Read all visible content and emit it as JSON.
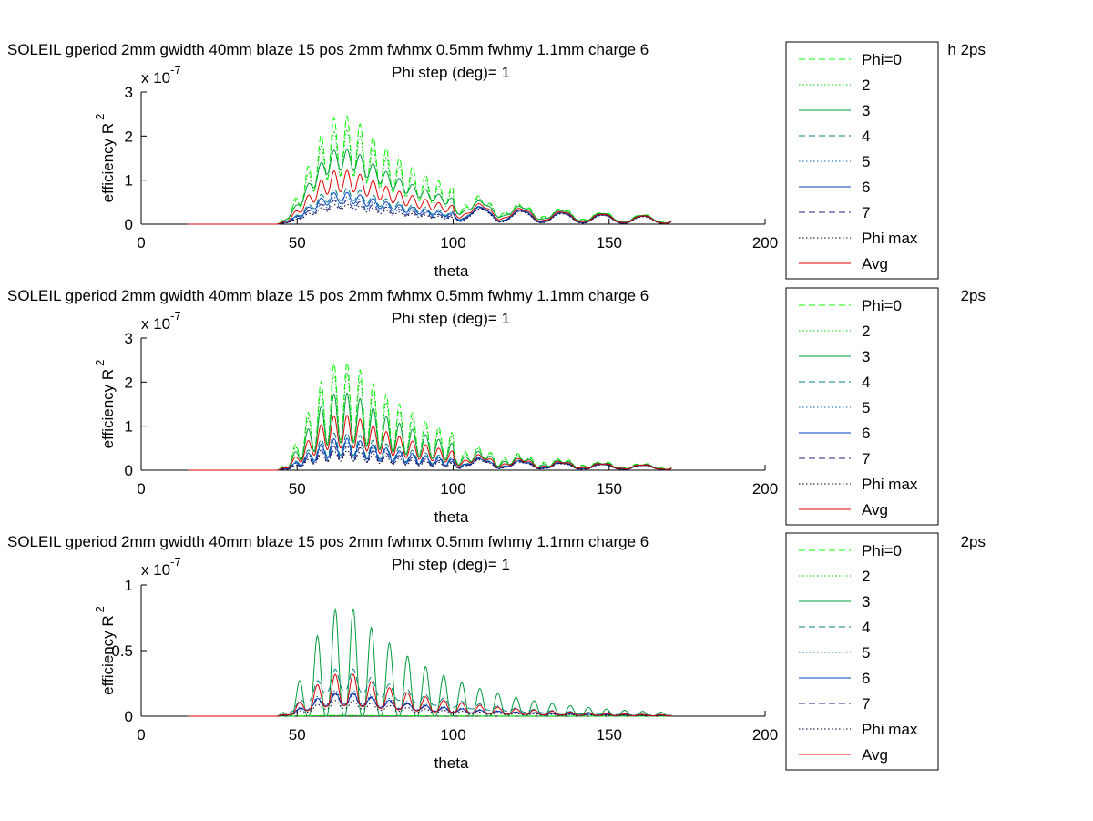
{
  "chart_data": [
    {
      "type": "line",
      "title": "SOLEIL gperiod 2mm gwidth 40mm blaze 15 pos 2mm fwhmx 0.5mm fwhmy 1.1mm charge 6",
      "title_right": "h 2ps",
      "subtitle": "Phi step (deg)= 1",
      "xlabel": "theta",
      "ylabel": "efficiency R",
      "ylabel_sup": "2",
      "exponent": "x 10",
      "exponent_sup": "-7",
      "xlim": [
        0,
        200
      ],
      "ylim": [
        0,
        3
      ],
      "xticks": [
        "0",
        "50",
        "100",
        "150",
        "200"
      ],
      "yticks": [
        "0",
        "1",
        "2",
        "3"
      ],
      "legend_position": "right",
      "legend": [
        "Phi=0",
        "2",
        "3",
        "4",
        "5",
        "6",
        "7",
        "Phi max",
        "Avg"
      ],
      "model": "A",
      "series": [
        {
          "name": "Phi=0",
          "color": "#00ff00",
          "dash": "dashed",
          "peak": 2.45,
          "osc": 0.55
        },
        {
          "name": "2",
          "color": "#00c800",
          "dash": "dotted",
          "peak": 2.15,
          "osc": 0.5
        },
        {
          "name": "3",
          "color": "#009b3a",
          "dash": "solid",
          "peak": 1.7,
          "osc": 0.28
        },
        {
          "name": "4",
          "color": "#008080",
          "dash": "dashed",
          "peak": 0.82,
          "osc": 0.35
        },
        {
          "name": "5",
          "color": "#0064b4",
          "dash": "dotted",
          "peak": 0.62,
          "osc": 0.35
        },
        {
          "name": "6",
          "color": "#0040c0",
          "dash": "solid",
          "peak": 0.72,
          "osc": 0.35
        },
        {
          "name": "7",
          "color": "#202080",
          "dash": "dashed",
          "peak": 0.55,
          "osc": 0.35
        },
        {
          "name": "Phi max",
          "color": "#000030",
          "dash": "dotted",
          "peak": 0.45,
          "osc": 0.3
        },
        {
          "name": "Avg",
          "color": "#e00000",
          "dash": "solid",
          "peak": 1.22,
          "osc": 0.4
        }
      ]
    },
    {
      "type": "line",
      "title": "SOLEIL gperiod 2mm gwidth 40mm blaze 15 pos 2mm fwhmx 0.5mm fwhmy 1.1mm charge 6",
      "title_right": "2ps",
      "subtitle": "Phi step (deg)= 1",
      "xlabel": "theta",
      "ylabel": "efficiency R",
      "ylabel_sup": "2",
      "exponent": "x 10",
      "exponent_sup": "-7",
      "xlim": [
        0,
        200
      ],
      "ylim": [
        0,
        3
      ],
      "xticks": [
        "0",
        "50",
        "100",
        "150",
        "200"
      ],
      "yticks": [
        "0",
        "1",
        "2",
        "3"
      ],
      "legend_position": "right",
      "legend": [
        "Phi=0",
        "2",
        "3",
        "4",
        "5",
        "6",
        "7",
        "Phi max",
        "Avg"
      ],
      "model": "B",
      "series": [
        {
          "name": "Phi=0",
          "color": "#00ff00",
          "dash": "dashed",
          "peak": 2.45,
          "osc": 0.75
        },
        {
          "name": "2",
          "color": "#00c800",
          "dash": "dotted",
          "peak": 2.2,
          "osc": 0.7
        },
        {
          "name": "3",
          "color": "#009b3a",
          "dash": "solid",
          "peak": 1.75,
          "osc": 0.65
        },
        {
          "name": "4",
          "color": "#008080",
          "dash": "dashed",
          "peak": 0.85,
          "osc": 0.6
        },
        {
          "name": "5",
          "color": "#0064b4",
          "dash": "dotted",
          "peak": 0.65,
          "osc": 0.6
        },
        {
          "name": "6",
          "color": "#0040c0",
          "dash": "solid",
          "peak": 0.72,
          "osc": 0.6
        },
        {
          "name": "7",
          "color": "#202080",
          "dash": "dashed",
          "peak": 0.55,
          "osc": 0.6
        },
        {
          "name": "Phi max",
          "color": "#000030",
          "dash": "dotted",
          "peak": 0.45,
          "osc": 0.55
        },
        {
          "name": "Avg",
          "color": "#e00000",
          "dash": "solid",
          "peak": 1.25,
          "osc": 0.6
        }
      ]
    },
    {
      "type": "line",
      "title": "SOLEIL gperiod 2mm gwidth 40mm blaze 15 pos 2mm fwhmx 0.5mm fwhmy 1.1mm charge 6",
      "title_right": "2ps",
      "subtitle": "Phi step (deg)= 1",
      "xlabel": "theta",
      "ylabel": "efficiency R",
      "ylabel_sup": "2",
      "exponent": "x 10",
      "exponent_sup": "-7",
      "xlim": [
        0,
        200
      ],
      "ylim": [
        0,
        1
      ],
      "xticks": [
        "0",
        "50",
        "100",
        "150",
        "200"
      ],
      "yticks": [
        "0",
        "0.5",
        "1"
      ],
      "legend_position": "right",
      "legend": [
        "Phi=0",
        "2",
        "3",
        "4",
        "5",
        "6",
        "7",
        "Phi max",
        "Avg"
      ],
      "model": "C",
      "series": [
        {
          "name": "Phi=0",
          "color": "#00ff00",
          "dash": "dashed",
          "peak": 0.005,
          "osc": 0.0
        },
        {
          "name": "2",
          "color": "#00c800",
          "dash": "dotted",
          "peak": 0.005,
          "osc": 0.0
        },
        {
          "name": "3",
          "color": "#009b3a",
          "dash": "solid",
          "peak": 0.82,
          "osc": 1.0
        },
        {
          "name": "4",
          "color": "#008080",
          "dash": "dashed",
          "peak": 0.36,
          "osc": 0.45
        },
        {
          "name": "5",
          "color": "#0064b4",
          "dash": "dotted",
          "peak": 0.2,
          "osc": 0.5
        },
        {
          "name": "6",
          "color": "#0040c0",
          "dash": "solid",
          "peak": 0.18,
          "osc": 0.5
        },
        {
          "name": "7",
          "color": "#202080",
          "dash": "dashed",
          "peak": 0.17,
          "osc": 0.5
        },
        {
          "name": "Phi max",
          "color": "#000030",
          "dash": "dotted",
          "peak": 0.12,
          "osc": 0.5
        },
        {
          "name": "Avg",
          "color": "#e00000",
          "dash": "solid",
          "peak": 0.32,
          "osc": 0.75
        }
      ]
    }
  ]
}
